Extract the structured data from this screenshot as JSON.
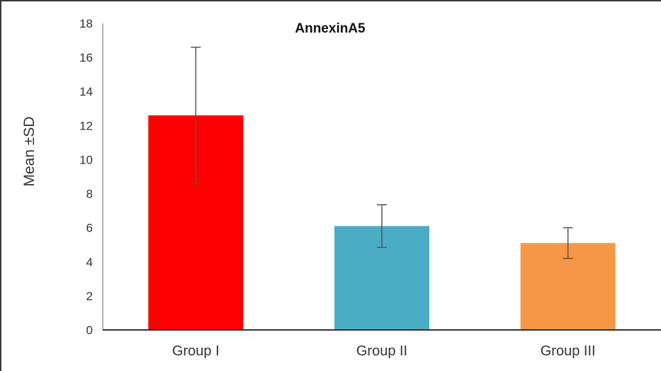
{
  "chart_data": {
    "type": "bar",
    "title": "AnnexinA5",
    "xlabel": "",
    "ylabel": "Mean ±SD",
    "categories": [
      "Group I",
      "Group II",
      "Group III"
    ],
    "values": [
      12.6,
      6.1,
      5.1
    ],
    "errors": [
      4.0,
      1.25,
      0.9
    ],
    "colors": [
      "#ff0000",
      "#4bacc6",
      "#f79646"
    ],
    "ylim": [
      0,
      18
    ],
    "yticks": [
      "0",
      "2",
      "4",
      "6",
      "8",
      "10",
      "12",
      "14",
      "16",
      "18"
    ],
    "grid": false
  }
}
